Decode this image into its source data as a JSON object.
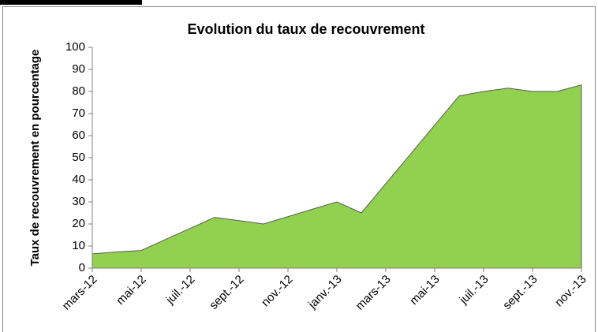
{
  "chart_data": {
    "type": "area",
    "title": "Evolution du taux de recouvrement",
    "ylabel": "Taux de recouvrement en pourcentage",
    "categories": [
      "mars-12",
      null,
      "mai-12",
      null,
      "juil.-12",
      null,
      "sept.-12",
      null,
      "nov.-12",
      null,
      "janv.-13",
      null,
      "mars-13",
      null,
      "mai-13",
      null,
      "juil.-13",
      null,
      "sept.-13",
      null,
      "nov.-13"
    ],
    "values": [
      6.5,
      7.3,
      8,
      13,
      18,
      23,
      21.5,
      20,
      23.3,
      26.7,
      30,
      25,
      38.3,
      51.5,
      64.8,
      78,
      80,
      81.5,
      80,
      80,
      83
    ],
    "color": "#92d050",
    "ylim": [
      0,
      100
    ],
    "yticks": [
      0,
      10,
      20,
      30,
      40,
      50,
      60,
      70,
      80,
      90,
      100
    ],
    "grid": false
  }
}
